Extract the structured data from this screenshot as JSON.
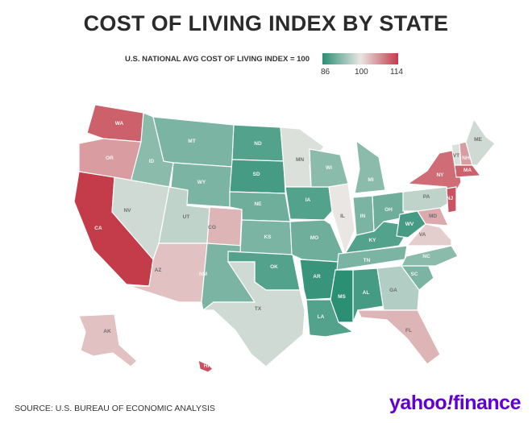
{
  "title": "COST OF LIVING INDEX BY STATE",
  "legend": {
    "label": "U.S. NATIONAL AVG COST OF LIVING INDEX = 100",
    "ticks": [
      "86",
      "100",
      "114"
    ],
    "colors": {
      "low": "#2a8f73",
      "mid": "#e9e6e3",
      "high": "#c43b4a"
    }
  },
  "source": "SOURCE: U.S. BUREAU OF ECONOMIC ANALYSIS",
  "brand": {
    "name": "yahoo",
    "excl": "!",
    "product": "finance"
  },
  "states": [
    {
      "code": "WA",
      "index": 111
    },
    {
      "code": "OR",
      "index": 106
    },
    {
      "code": "CA",
      "index": 114
    },
    {
      "code": "ID",
      "index": 93
    },
    {
      "code": "NV",
      "index": 98
    },
    {
      "code": "MT",
      "index": 92
    },
    {
      "code": "WY",
      "index": 92
    },
    {
      "code": "UT",
      "index": 97
    },
    {
      "code": "AZ",
      "index": 103
    },
    {
      "code": "CO",
      "index": 104
    },
    {
      "code": "NM",
      "index": 92
    },
    {
      "code": "ND",
      "index": 89
    },
    {
      "code": "SD",
      "index": 88
    },
    {
      "code": "NE",
      "index": 91
    },
    {
      "code": "KS",
      "index": 92
    },
    {
      "code": "OK",
      "index": 89
    },
    {
      "code": "TX",
      "index": 98
    },
    {
      "code": "MN",
      "index": 99
    },
    {
      "code": "IA",
      "index": 89
    },
    {
      "code": "MO",
      "index": 91
    },
    {
      "code": "AR",
      "index": 87
    },
    {
      "code": "LA",
      "index": 89
    },
    {
      "code": "WI",
      "index": 93
    },
    {
      "code": "IL",
      "index": 100
    },
    {
      "code": "MS",
      "index": 86
    },
    {
      "code": "MI",
      "index": 93
    },
    {
      "code": "IN",
      "index": 92
    },
    {
      "code": "KY",
      "index": 89
    },
    {
      "code": "TN",
      "index": 92
    },
    {
      "code": "AL",
      "index": 88
    },
    {
      "code": "OH",
      "index": 91
    },
    {
      "code": "WV",
      "index": 88
    },
    {
      "code": "GA",
      "index": 96
    },
    {
      "code": "FL",
      "index": 104
    },
    {
      "code": "SC",
      "index": 92
    },
    {
      "code": "NC",
      "index": 93
    },
    {
      "code": "VA",
      "index": 102
    },
    {
      "code": "PA",
      "index": 97
    },
    {
      "code": "NY",
      "index": 110
    },
    {
      "code": "VT",
      "index": 99
    },
    {
      "code": "NH",
      "index": 106
    },
    {
      "code": "ME",
      "index": 98
    },
    {
      "code": "MA",
      "index": 111
    },
    {
      "code": "NJ",
      "index": 112
    },
    {
      "code": "MD",
      "index": 105
    },
    {
      "code": "AK",
      "index": 103
    },
    {
      "code": "HI",
      "index": 112
    }
  ]
}
